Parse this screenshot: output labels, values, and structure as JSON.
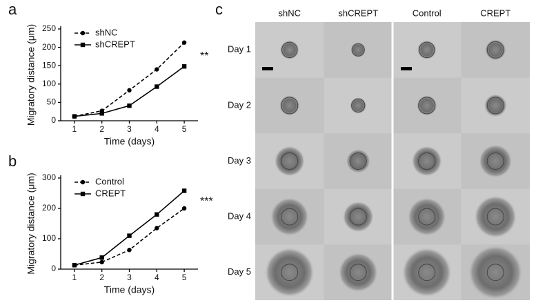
{
  "chart_data": [
    {
      "type": "line",
      "panel": "a",
      "xlabel": "Time (days)",
      "ylabel": "Migratory distance (μm)",
      "x": [
        1,
        2,
        3,
        4,
        5
      ],
      "xlim": [
        0.5,
        5.5
      ],
      "xticks": [
        1,
        2,
        3,
        4,
        5
      ],
      "ylim": [
        0,
        250
      ],
      "yticks": [
        0,
        50,
        100,
        150,
        200,
        250
      ],
      "annotation": "**",
      "legend": "upper left",
      "series": [
        {
          "name": "shNC",
          "color": "#000000",
          "dashed": true,
          "marker": "circle",
          "values": [
            12,
            27,
            83,
            140,
            213
          ]
        },
        {
          "name": "shCREPT",
          "color": "#000000",
          "dashed": false,
          "marker": "square",
          "values": [
            12,
            20,
            41,
            93,
            148
          ]
        }
      ]
    },
    {
      "type": "line",
      "panel": "b",
      "xlabel": "Time (days)",
      "ylabel": "Migratory distance (μm)",
      "x": [
        1,
        2,
        3,
        4,
        5
      ],
      "xlim": [
        0.5,
        5.5
      ],
      "xticks": [
        1,
        2,
        3,
        4,
        5
      ],
      "ylim": [
        0,
        300
      ],
      "yticks": [
        0,
        100,
        200,
        300
      ],
      "annotation": "***",
      "legend": "upper left",
      "series": [
        {
          "name": "Control",
          "color": "#000000",
          "dashed": true,
          "marker": "circle",
          "values": [
            13,
            23,
            63,
            135,
            200
          ]
        },
        {
          "name": "CREPT",
          "color": "#000000",
          "dashed": false,
          "marker": "square",
          "values": [
            13,
            38,
            110,
            180,
            258
          ]
        }
      ]
    }
  ],
  "panel_c": {
    "label": "c",
    "columns": [
      "shNC",
      "shCREPT",
      "Control",
      "CREPT"
    ],
    "rows": [
      "Day 1",
      "Day 2",
      "Day 3",
      "Day 4",
      "Day 5"
    ]
  }
}
